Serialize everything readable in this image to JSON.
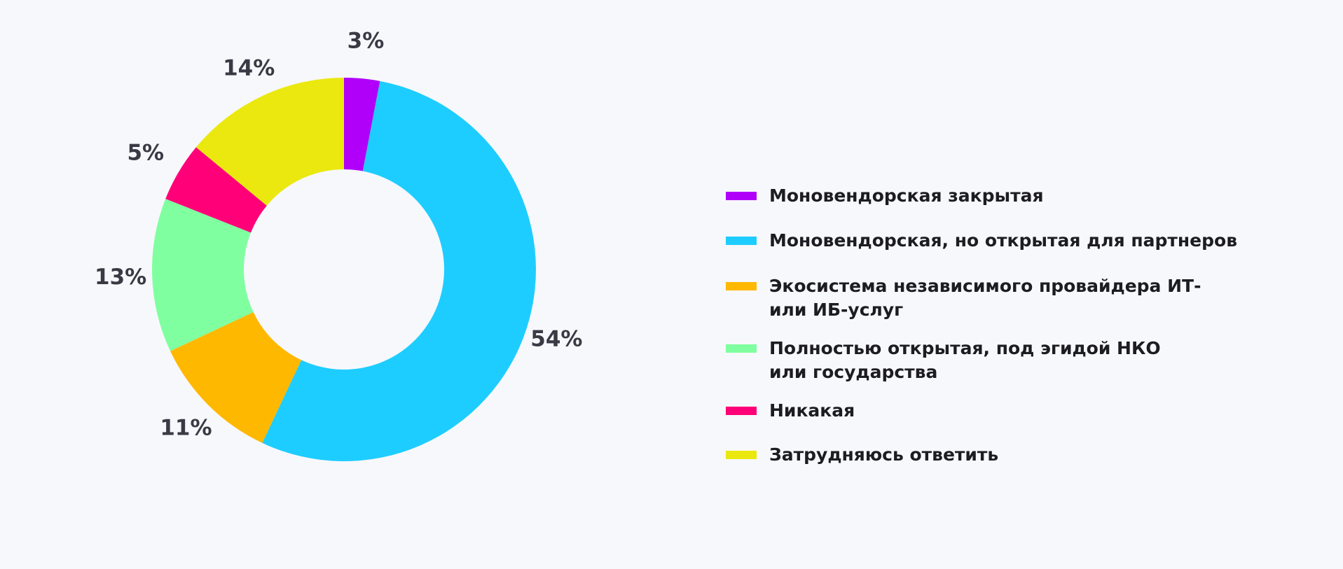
{
  "chart_data": {
    "type": "pie",
    "donut": true,
    "start": "top",
    "direction": "clockwise",
    "legend_position": "right",
    "slices": [
      {
        "label": "Моновендорская закрытая",
        "value": 3,
        "display": "3%",
        "color": "#b000fa"
      },
      {
        "label": "Моновендорская, но открытая для партнеров",
        "value": 54,
        "display": "54%",
        "color": "#1ecdff"
      },
      {
        "label": "Экосистема независимого провайдера ИТ- или ИБ-услуг",
        "label_lines": [
          "Экосистема независимого провайдера ИТ-",
          "или ИБ-услуг"
        ],
        "value": 11,
        "display": "11%",
        "color": "#ffb800"
      },
      {
        "label": "Полностью открытая, под эгидой НКО или государства",
        "label_lines": [
          "Полностью открытая, под эгидой НКО",
          "или государства"
        ],
        "value": 13,
        "display": "13%",
        "color": "#80ffa0"
      },
      {
        "label": "Никакая",
        "value": 5,
        "display": "5%",
        "color": "#ff0078"
      },
      {
        "label": "Затрудняюсь ответить",
        "value": 14,
        "display": "14%",
        "color": "#ebe80f"
      }
    ]
  }
}
